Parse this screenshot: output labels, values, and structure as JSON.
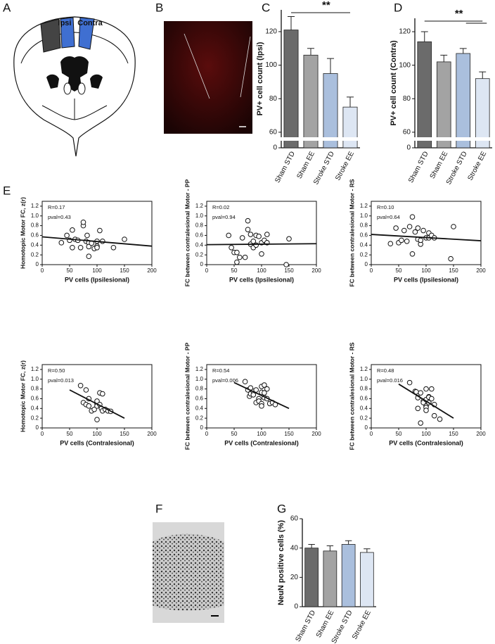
{
  "panel_labels": [
    "A",
    "B",
    "C",
    "D",
    "E",
    "F",
    "G"
  ],
  "diagram": {
    "labels": [
      "Ipsi",
      "Contra"
    ]
  },
  "chart_data": [
    {
      "type": "bar",
      "y_label": "PV+ cell count (Ipsi)",
      "categories": [
        "Sham STD",
        "Sham EE",
        "Stroke STD",
        "Stroke EE"
      ],
      "values": [
        121,
        106,
        95,
        75
      ],
      "errors": [
        8,
        4,
        9,
        6
      ],
      "colors": [
        "#6b6b6b",
        "#a3a3a3",
        "#aabfdd",
        "#dde6f3"
      ],
      "ylim": [
        0,
        133
      ],
      "ybreak": [
        3,
        57
      ],
      "yticks": [
        0,
        60,
        80,
        100,
        120
      ],
      "significance": {
        "label": "**",
        "pairs": [
          [
            0,
            3
          ]
        ]
      }
    },
    {
      "type": "bar",
      "y_label": "PV+ cell count (Contra)",
      "categories": [
        "Sham STD",
        "Sham EE",
        "Stroke STD",
        "Stroke EE"
      ],
      "values": [
        114,
        102,
        107,
        92
      ],
      "errors": [
        6,
        4,
        3,
        4
      ],
      "colors": [
        "#6b6b6b",
        "#a3a3a3",
        "#aabfdd",
        "#dde6f3"
      ],
      "ylim": [
        0,
        128
      ],
      "ybreak": [
        3,
        57
      ],
      "yticks": [
        0,
        60,
        80,
        100,
        120
      ],
      "significance": {
        "label": "**",
        "pairs": [
          [
            0,
            3
          ],
          [
            2,
            3
          ]
        ]
      }
    },
    {
      "type": "scatter",
      "x_label": "PV cells (Ipsilesional)",
      "y_label": "Homotopic Motor FC, z(r)",
      "annotations": [
        "R=0.17",
        "pval=0.43"
      ],
      "x": [
        35,
        45,
        50,
        55,
        55,
        60,
        65,
        70,
        75,
        75,
        80,
        82,
        85,
        85,
        85,
        90,
        95,
        100,
        100,
        100,
        105,
        110,
        130,
        150
      ],
      "y": [
        0.45,
        0.6,
        0.5,
        0.71,
        0.35,
        0.52,
        0.5,
        0.35,
        0.8,
        0.87,
        0.48,
        0.6,
        0.45,
        0.37,
        0.17,
        0.44,
        0.33,
        0.48,
        0.38,
        0.35,
        0.7,
        0.48,
        0.35,
        0.52
      ],
      "fit": {
        "x": [
          0,
          200
        ],
        "y": [
          0.57,
          0.38
        ]
      },
      "xlim": [
        0,
        200
      ],
      "xticks": [
        0,
        50,
        100,
        150,
        200
      ],
      "ylim": [
        0,
        1.3
      ],
      "yticks": [
        0,
        0.2,
        0.4,
        0.6,
        0.8,
        {
          "value": 1,
          "label": "1.0"
        },
        1.2
      ]
    },
    {
      "type": "scatter",
      "x_label": "PV cells (Ipsilesional)",
      "y_label": "FC between contralesional Motor - PP",
      "annotations": [
        "R=0.02",
        "pval=0.94"
      ],
      "x": [
        40,
        45,
        50,
        55,
        55,
        60,
        65,
        70,
        75,
        75,
        80,
        80,
        85,
        85,
        90,
        90,
        95,
        100,
        100,
        105,
        110,
        110,
        145,
        150
      ],
      "y": [
        0.6,
        0.35,
        0.25,
        0.25,
        0.05,
        0.15,
        0.55,
        0.15,
        0.9,
        0.72,
        0.62,
        0.42,
        0.35,
        0.48,
        0.6,
        0.4,
        0.58,
        0.45,
        0.22,
        0.5,
        0.45,
        0.62,
        0.0,
        0.53
      ],
      "fit": {
        "x": [
          0,
          200
        ],
        "y": [
          0.41,
          0.43
        ]
      },
      "xlim": [
        0,
        200
      ],
      "xticks": [
        0,
        50,
        100,
        150,
        200
      ],
      "ylim": [
        0,
        1.3
      ],
      "yticks": [
        0,
        0.2,
        0.4,
        0.6,
        0.8,
        {
          "value": 1,
          "label": "1.0"
        },
        1.2
      ]
    },
    {
      "type": "scatter",
      "x_label": "PV cells (Ipsilesional)",
      "y_label": "FC between contralesional Motor - RS",
      "annotations": [
        "R=0.10",
        "pval=0.64"
      ],
      "x": [
        35,
        45,
        50,
        55,
        60,
        65,
        70,
        75,
        75,
        80,
        85,
        85,
        90,
        90,
        95,
        100,
        105,
        105,
        110,
        115,
        150,
        145
      ],
      "y": [
        0.43,
        0.75,
        0.45,
        0.5,
        0.7,
        0.48,
        0.78,
        0.22,
        0.98,
        0.67,
        0.75,
        0.52,
        0.42,
        0.5,
        0.7,
        0.55,
        0.65,
        0.55,
        0.6,
        0.55,
        0.78,
        0.12
      ],
      "fit": {
        "x": [
          0,
          200
        ],
        "y": [
          0.62,
          0.49
        ]
      },
      "xlim": [
        0,
        200
      ],
      "xticks": [
        0,
        50,
        100,
        150,
        200
      ],
      "ylim": [
        0,
        1.3
      ],
      "yticks": [
        0,
        0.2,
        0.4,
        0.6,
        0.8,
        {
          "value": 1,
          "label": "1.0"
        },
        1.2
      ]
    },
    {
      "type": "scatter",
      "x_label": "PV cells (Contralesional)",
      "y_label": "Homotopic Motor FC, z(r)",
      "annotations": [
        "R=0.50",
        "pval=0.013"
      ],
      "x": [
        70,
        75,
        80,
        80,
        85,
        85,
        90,
        95,
        100,
        100,
        100,
        100,
        100,
        105,
        105,
        108,
        110,
        110,
        115,
        120,
        125
      ],
      "y": [
        0.87,
        0.52,
        0.48,
        0.78,
        0.45,
        0.6,
        0.35,
        0.38,
        0.52,
        0.5,
        0.45,
        0.17,
        0.55,
        0.48,
        0.72,
        0.4,
        0.7,
        0.35,
        0.38,
        0.35,
        0.34
      ],
      "fit": {
        "x": [
          50,
          150
        ],
        "y": [
          0.78,
          0.2
        ]
      },
      "xlim": [
        0,
        200
      ],
      "xticks": [
        0,
        50,
        100,
        150,
        200
      ],
      "ylim": [
        0,
        1.3
      ],
      "yticks": [
        0,
        0.2,
        0.4,
        0.6,
        0.8,
        {
          "value": 1,
          "label": "1.0"
        },
        1.2
      ]
    },
    {
      "type": "scatter",
      "x_label": "PV cells (Contralesional)",
      "y_label": "FC between contralesional Motor - PP",
      "annotations": [
        "R=0.54",
        "pval=0.006"
      ],
      "x": [
        70,
        75,
        78,
        80,
        80,
        85,
        85,
        90,
        90,
        95,
        95,
        100,
        100,
        100,
        100,
        105,
        105,
        105,
        110,
        110,
        115,
        120,
        125
      ],
      "y": [
        0.95,
        0.78,
        0.65,
        0.82,
        0.7,
        0.75,
        0.68,
        0.52,
        0.78,
        0.6,
        0.55,
        0.85,
        0.73,
        0.5,
        0.45,
        0.88,
        0.72,
        0.62,
        0.8,
        0.6,
        0.5,
        0.52,
        0.48
      ],
      "fit": {
        "x": [
          50,
          150
        ],
        "y": [
          0.93,
          0.4
        ]
      },
      "xlim": [
        0,
        200
      ],
      "xticks": [
        0,
        50,
        100,
        150,
        200
      ],
      "ylim": [
        0,
        1.3
      ],
      "yticks": [
        0,
        0.2,
        0.4,
        0.6,
        0.8,
        {
          "value": 1,
          "label": "1.0"
        },
        1.2
      ]
    },
    {
      "type": "scatter",
      "x_label": "PV cells (Contralesional)",
      "y_label": "FC between contralesional Motor - RS",
      "annotations": [
        "R=0.48",
        "pval=0.016"
      ],
      "x": [
        70,
        80,
        82,
        85,
        85,
        90,
        90,
        95,
        95,
        100,
        100,
        100,
        100,
        100,
        105,
        105,
        105,
        110,
        110,
        115,
        115,
        125
      ],
      "y": [
        0.93,
        0.75,
        0.74,
        0.62,
        0.4,
        0.1,
        0.72,
        0.55,
        0.52,
        0.8,
        0.58,
        0.45,
        0.42,
        0.36,
        0.64,
        0.63,
        0.52,
        0.8,
        0.6,
        0.48,
        0.25,
        0.18
      ],
      "fit": {
        "x": [
          50,
          150
        ],
        "y": [
          0.9,
          0.2
        ]
      },
      "xlim": [
        0,
        200
      ],
      "xticks": [
        0,
        50,
        100,
        150,
        200
      ],
      "ylim": [
        0,
        1.3
      ],
      "yticks": [
        0,
        0.2,
        0.4,
        0.6,
        0.8,
        {
          "value": 1,
          "label": "1.0"
        },
        1.2
      ]
    },
    {
      "type": "bar",
      "y_label": "NeuN positive cells (%)",
      "categories": [
        "Sham STD",
        "Sham EE",
        "Stroke STD",
        "Stroke EE"
      ],
      "values": [
        40,
        38,
        42.5,
        37
      ],
      "errors": [
        2.5,
        3.5,
        2.5,
        2.5
      ],
      "colors": [
        "#6b6b6b",
        "#a3a3a3",
        "#aabfdd",
        "#dde6f3"
      ],
      "ylim": [
        0,
        60
      ],
      "yticks": [
        0,
        20,
        40,
        60
      ]
    }
  ]
}
